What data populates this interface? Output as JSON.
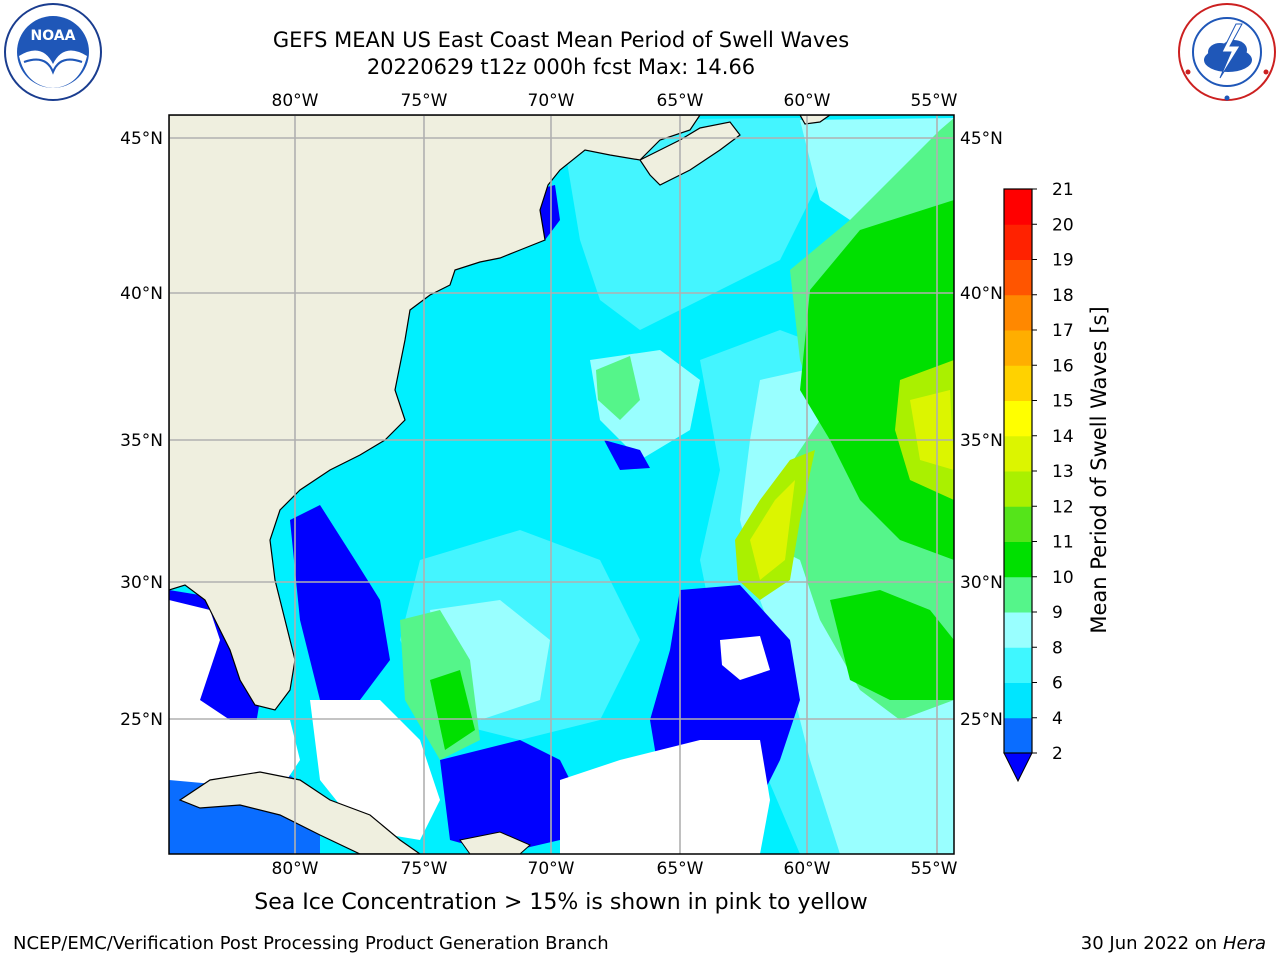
{
  "title": {
    "line1": "GEFS MEAN US East Coast Mean Period of Swell Waves",
    "line2": "20220629 t12z 000h fcst   Max: 14.66"
  },
  "caption": "Sea Ice Concentration > 15% is shown in pink to yellow",
  "footer": {
    "left": "NCEP/EMC/Verification Post Processing Product Generation Branch",
    "right_date": "30 Jun 2022 on",
    "right_host": "Hera"
  },
  "logos": {
    "noaa_text": "NOAA",
    "noaa_ring": "NATIONAL OCEANIC AND ATMOSPHERIC ADMINISTRATION · U.S. DEPARTMENT OF COMMERCE",
    "nws_ring": "NATIONAL WEATHER SERVICE"
  },
  "map": {
    "lon_labels": [
      "80°W",
      "75°W",
      "70°W",
      "65°W",
      "60°W",
      "55°W"
    ],
    "lat_labels": [
      "45°N",
      "40°N",
      "35°N",
      "30°N",
      "25°N"
    ],
    "colors": {
      "land": "#efefdf",
      "missing": "#ffffff",
      "grid": "#b0b0b0"
    }
  },
  "colorbar": {
    "label": "Mean Period of Swell Waves [s]",
    "ticks": [
      "2",
      "4",
      "6",
      "8",
      "9",
      "10",
      "11",
      "12",
      "13",
      "14",
      "15",
      "16",
      "17",
      "18",
      "19",
      "20",
      "21"
    ],
    "colors": [
      "#0000ff",
      "#0a6dff",
      "#00e5ff",
      "#3ff7ff",
      "#99ffff",
      "#55f58a",
      "#00e000",
      "#55e41a",
      "#aaf000",
      "#dcf500",
      "#ffff00",
      "#ffd200",
      "#ffae00",
      "#ff8800",
      "#ff5500",
      "#ff2200",
      "#ff0000"
    ]
  }
}
